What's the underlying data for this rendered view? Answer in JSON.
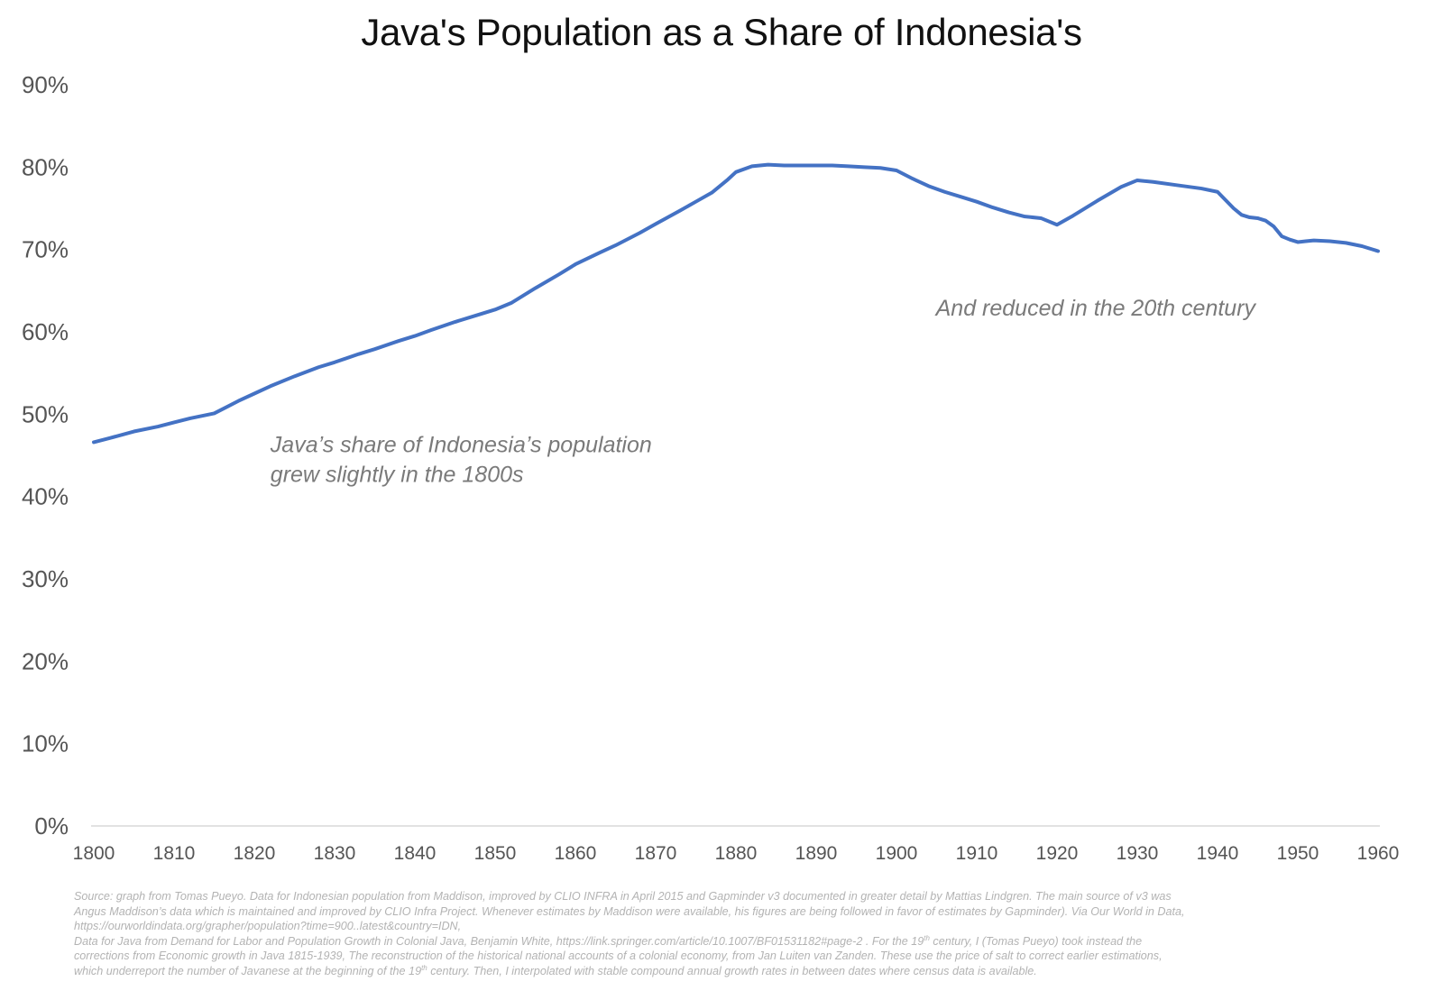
{
  "chart_data": {
    "type": "line",
    "title": "Java's Population as a Share of Indonesia's",
    "xlabel": "",
    "ylabel": "",
    "xlim": [
      1800,
      1960
    ],
    "ylim": [
      0,
      90
    ],
    "x_ticks": [
      1800,
      1810,
      1820,
      1830,
      1840,
      1850,
      1860,
      1870,
      1880,
      1890,
      1900,
      1910,
      1920,
      1930,
      1940,
      1950,
      1960
    ],
    "y_ticks": [
      0,
      10,
      20,
      30,
      40,
      50,
      60,
      70,
      80,
      90
    ],
    "y_tick_labels": [
      "0%",
      "10%",
      "20%",
      "30%",
      "40%",
      "50%",
      "60%",
      "70%",
      "80%",
      "90%"
    ],
    "grid": false,
    "legend": "none",
    "series": [
      {
        "color": "#4472c4",
        "x": [
          1800,
          1802,
          1805,
          1808,
          1810,
          1812,
          1815,
          1818,
          1820,
          1822,
          1825,
          1828,
          1830,
          1833,
          1835,
          1838,
          1840,
          1842,
          1845,
          1848,
          1850,
          1852,
          1855,
          1858,
          1860,
          1863,
          1865,
          1868,
          1870,
          1873,
          1875,
          1877,
          1879,
          1880,
          1882,
          1884,
          1886,
          1888,
          1890,
          1892,
          1894,
          1896,
          1898,
          1900,
          1902,
          1904,
          1906,
          1908,
          1910,
          1912,
          1914,
          1916,
          1918,
          1920,
          1922,
          1925,
          1928,
          1930,
          1932,
          1935,
          1938,
          1940,
          1941,
          1942,
          1943,
          1944,
          1945,
          1946,
          1947,
          1948,
          1949,
          1950,
          1951,
          1952,
          1954,
          1956,
          1958,
          1960
        ],
        "y": [
          46.6,
          47.1,
          47.9,
          48.5,
          49.0,
          49.5,
          50.1,
          51.6,
          52.5,
          53.4,
          54.6,
          55.7,
          56.3,
          57.3,
          57.9,
          58.9,
          59.5,
          60.2,
          61.2,
          62.1,
          62.7,
          63.5,
          65.3,
          67.0,
          68.2,
          69.6,
          70.5,
          72.0,
          73.1,
          74.7,
          75.8,
          76.9,
          78.5,
          79.4,
          80.1,
          80.3,
          80.2,
          80.2,
          80.2,
          80.2,
          80.1,
          80.0,
          79.9,
          79.6,
          78.6,
          77.7,
          77.0,
          76.4,
          75.8,
          75.1,
          74.5,
          74.0,
          73.8,
          73.0,
          74.1,
          75.9,
          77.6,
          78.4,
          78.2,
          77.8,
          77.4,
          77.0,
          76.0,
          75.0,
          74.2,
          73.9,
          73.8,
          73.5,
          72.8,
          71.6,
          71.2,
          70.9,
          71.0,
          71.1,
          71.0,
          70.8,
          70.4,
          69.8
        ]
      }
    ],
    "annotations": [
      {
        "lines": [
          "Java’s share of Indonesia’s population",
          "grew slightly in the 1800s"
        ],
        "x": 1822,
        "y": 46.6,
        "color": "#7a7a7a"
      },
      {
        "lines": [
          "And reduced in the 20th century"
        ],
        "x": 1904.9,
        "y": 63.2,
        "color": "#7a7a7a"
      }
    ]
  },
  "source": {
    "lines": [
      [
        "Source: graph from Tomas Pueyo. Data for Indonesian population from Maddison, improved by CLIO INFRA in April 2015 and Gapminder v3  documented in greater detail by Mattias Lindgren. The main source of v3 was"
      ],
      [
        "Angus Maddison’s data which is maintained and improved by CLIO Infra Project. Whenever estimates by Maddison were available, his figures are being followed in favor of estimates by Gapminder). Via Our World in Data,"
      ],
      [
        "https://ourworldindata.org/grapher/population?time=900..latest&country=IDN,"
      ],
      [
        "Data for Java from Demand for Labor and Population Growth in Colonial Java, Benjamin White, https://link.springer.com/article/10.1007/BF01531182#page-2 . For the 19",
        "th",
        " century, I (Tomas Pueyo) took instead the"
      ],
      [
        "corrections from Economic growth in Java 1815-1939, The reconstruction of the historical national accounts of a colonial economy, from Jan Luiten van Zanden. These use the price of salt to correct earlier estimations,"
      ],
      [
        "which underreport the number of Javanese at the beginning of the 19",
        "th",
        " century. Then, I interpolated with stable compound annual growth rates in between dates where census data is available."
      ]
    ]
  }
}
